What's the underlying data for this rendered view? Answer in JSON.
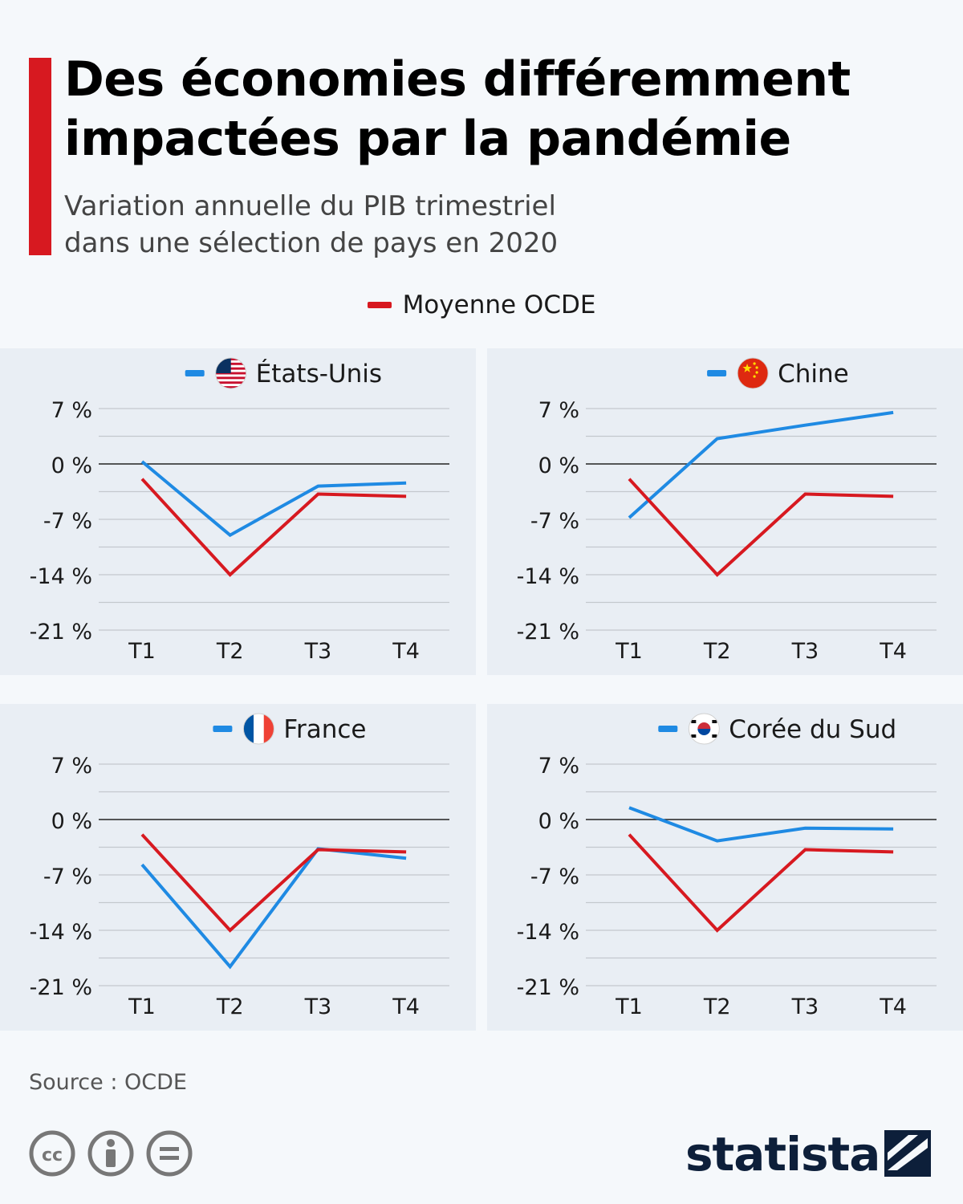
{
  "header": {
    "title": "Des économies différemment impactées par la pandémie",
    "subtitle_line1": "Variation annuelle du PIB trimestriel",
    "subtitle_line2": "dans une sélection de pays en 2020"
  },
  "legend": {
    "oecd_label": "Moyenne OCDE"
  },
  "footer": {
    "source": "Source : OCDE",
    "brand": "statista"
  },
  "colors": {
    "country": "#1f8ae3",
    "oecd": "#d71920",
    "accent": "#d71920",
    "panel_bg": "#e9eef4",
    "page_bg": "#f5f8fb"
  },
  "chart_data": [
    {
      "type": "line",
      "title": "États-Unis",
      "flag_icon": "us-flag-icon",
      "categories": [
        "T1",
        "T2",
        "T3",
        "T4"
      ],
      "ylim": [
        -21,
        7
      ],
      "yticks": [
        7,
        0,
        -7,
        -14,
        -21
      ],
      "ytick_labels": [
        "7 %",
        "0 %",
        "-7 %",
        "-14 %",
        "-21 %"
      ],
      "grid": true,
      "series": [
        {
          "name": "États-Unis",
          "values": [
            0.3,
            -9.0,
            -2.8,
            -2.4
          ]
        },
        {
          "name": "Moyenne OCDE",
          "values": [
            -1.9,
            -14.0,
            -3.8,
            -4.1
          ]
        }
      ]
    },
    {
      "type": "line",
      "title": "Chine",
      "flag_icon": "china-flag-icon",
      "categories": [
        "T1",
        "T2",
        "T3",
        "T4"
      ],
      "ylim": [
        -21,
        7
      ],
      "yticks": [
        7,
        0,
        -7,
        -14,
        -21
      ],
      "ytick_labels": [
        "7 %",
        "0 %",
        "-7 %",
        "-14 %",
        "-21 %"
      ],
      "grid": true,
      "series": [
        {
          "name": "Chine",
          "values": [
            -6.8,
            3.2,
            4.9,
            6.5
          ]
        },
        {
          "name": "Moyenne OCDE",
          "values": [
            -1.9,
            -14.0,
            -3.8,
            -4.1
          ]
        }
      ]
    },
    {
      "type": "line",
      "title": "France",
      "flag_icon": "france-flag-icon",
      "categories": [
        "T1",
        "T2",
        "T3",
        "T4"
      ],
      "ylim": [
        -21,
        7
      ],
      "yticks": [
        7,
        0,
        -7,
        -14,
        -21
      ],
      "ytick_labels": [
        "7 %",
        "0 %",
        "-7 %",
        "-14 %",
        "-21 %"
      ],
      "grid": true,
      "series": [
        {
          "name": "France",
          "values": [
            -5.7,
            -18.6,
            -3.7,
            -4.9
          ]
        },
        {
          "name": "Moyenne OCDE",
          "values": [
            -1.9,
            -14.0,
            -3.8,
            -4.1
          ]
        }
      ]
    },
    {
      "type": "line",
      "title": "Corée du Sud",
      "flag_icon": "south-korea-flag-icon",
      "categories": [
        "T1",
        "T2",
        "T3",
        "T4"
      ],
      "ylim": [
        -21,
        7
      ],
      "yticks": [
        7,
        0,
        -7,
        -14,
        -21
      ],
      "ytick_labels": [
        "7 %",
        "0 %",
        "-7 %",
        "-14 %",
        "-21 %"
      ],
      "grid": true,
      "series": [
        {
          "name": "Corée du Sud",
          "values": [
            1.5,
            -2.7,
            -1.1,
            -1.2
          ]
        },
        {
          "name": "Moyenne OCDE",
          "values": [
            -1.9,
            -14.0,
            -3.8,
            -4.1
          ]
        }
      ]
    }
  ]
}
